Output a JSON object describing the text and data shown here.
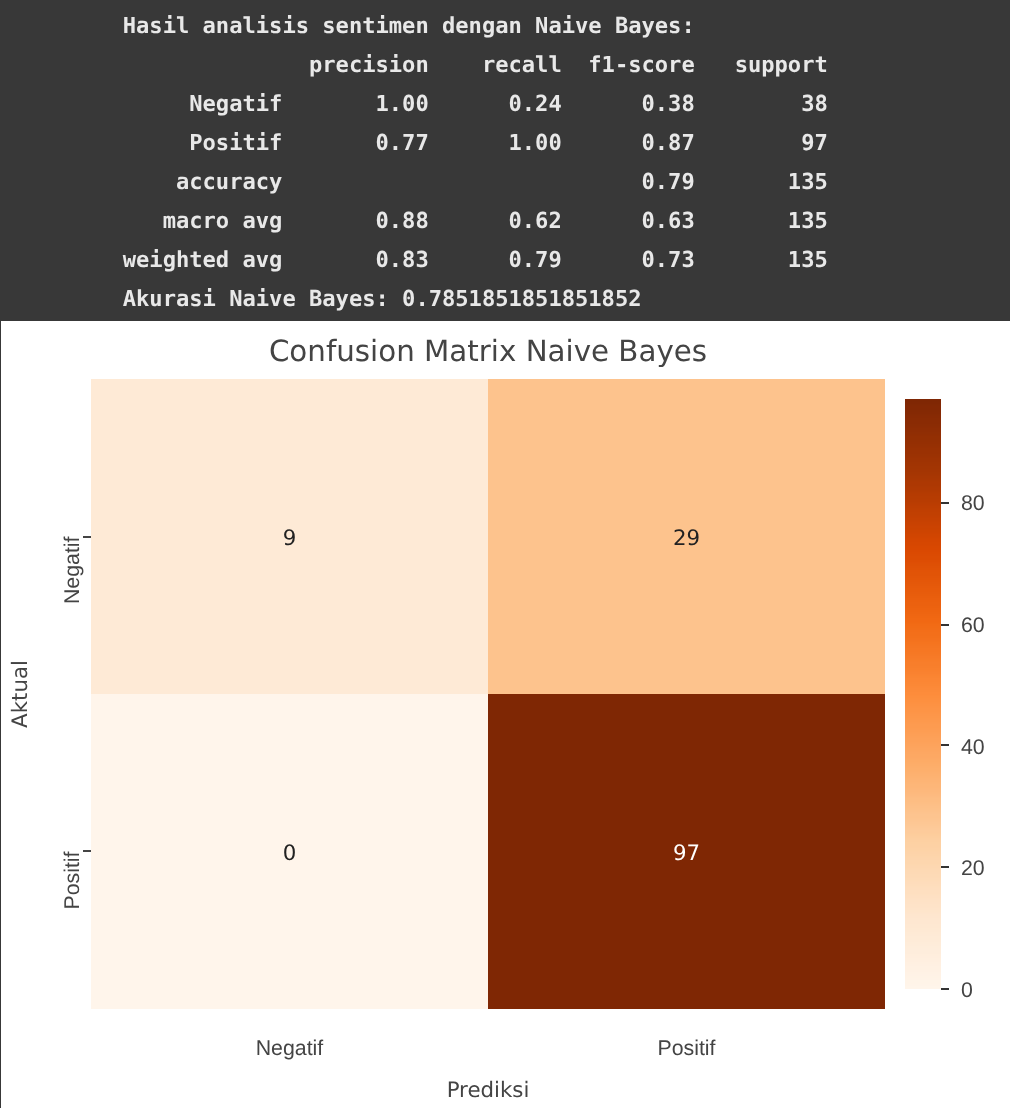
{
  "chart_data": {
    "type": "heatmap",
    "title": "Confusion Matrix Naive Bayes",
    "xlabel": "Prediksi",
    "ylabel": "Aktual",
    "categories": [
      "Negatif",
      "Positif"
    ],
    "y_categories": [
      "Negatif",
      "Positif"
    ],
    "cells": [
      [
        9,
        29
      ],
      [
        0,
        97
      ]
    ],
    "clim": [
      0,
      97
    ],
    "data_labels": true,
    "cticks": [
      0,
      20,
      40,
      60,
      80
    ],
    "annotations": [
      "Hasil analisis sentimen dengan Naive Bayes:",
      "              precision    recall  f1-score   support",
      "     Negatif       1.00      0.24      0.38        38",
      "     Positif       0.77      1.00      0.87        97",
      "    accuracy                           0.79       135",
      "   macro avg       0.88      0.62      0.63       135",
      "weighted avg       0.83      0.79      0.73       135",
      "Akurasi Naive Bayes: 0.7851851851851852"
    ]
  }
}
